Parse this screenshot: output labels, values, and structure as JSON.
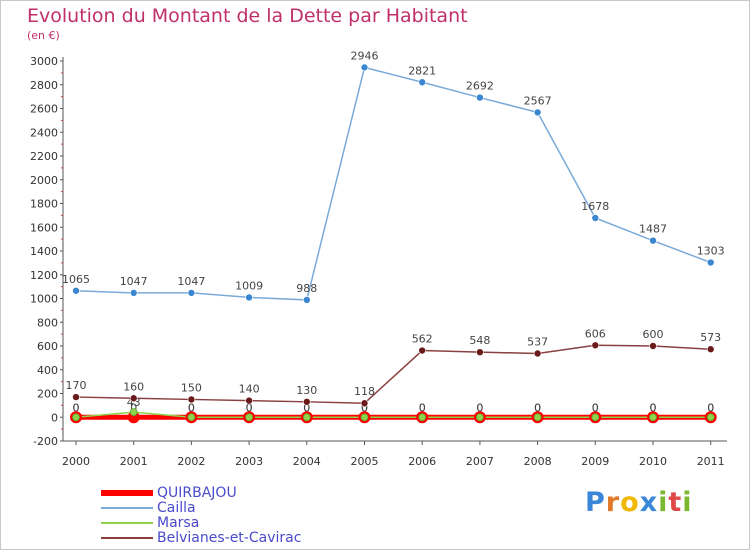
{
  "header": {
    "title": "Evolution du Montant de la Dette par Habitant",
    "unit": "(en €)"
  },
  "logo": {
    "letters": [
      "P",
      "r",
      "o",
      "x",
      "i",
      "t",
      "i"
    ],
    "colors": [
      "#3a86d8",
      "#e07a2a",
      "#f0b800",
      "#3a86d8",
      "#7ab830",
      "#e04848",
      "#7ab830"
    ]
  },
  "chart_data": {
    "type": "line",
    "title": "Evolution du Montant de la Dette par Habitant",
    "subtitle": "(en €)",
    "x": [
      "2000",
      "2001",
      "2002",
      "2003",
      "2004",
      "2005",
      "2006",
      "2007",
      "2008",
      "2009",
      "2010",
      "2011"
    ],
    "ylim": [
      -200,
      3000
    ],
    "yticks": [
      -200,
      0,
      200,
      400,
      600,
      800,
      1000,
      1200,
      1400,
      1600,
      1800,
      2000,
      2200,
      2400,
      2600,
      2800,
      3000
    ],
    "grid": false,
    "legend_position": "bottom-left",
    "series": [
      {
        "name": "QUIRBAJOU",
        "values": [
          0,
          0,
          0,
          0,
          0,
          0,
          0,
          0,
          0,
          0,
          0,
          0
        ],
        "labels": [
          "0",
          "0",
          "0",
          "0",
          "0",
          "0",
          "0",
          "0",
          "0",
          "0",
          "0",
          "0"
        ],
        "color": "#ff0000",
        "marker": "#ff0000"
      },
      {
        "name": "Cailla",
        "values": [
          1065,
          1047,
          1047,
          1009,
          988,
          2946,
          2821,
          2692,
          2567,
          1678,
          1487,
          1303
        ],
        "labels": [
          "1065",
          "1047",
          "1047",
          "1009",
          "988",
          "2946",
          "2821",
          "2692",
          "2567",
          "1678",
          "1487",
          "1303"
        ],
        "color": "#7aaad8",
        "marker": "#3a86d0"
      },
      {
        "name": "Marsa",
        "values": [
          0,
          43,
          0,
          0,
          0,
          0,
          0,
          0,
          0,
          0,
          0,
          0
        ],
        "labels": [
          "0",
          "43",
          "0",
          "0",
          "0",
          "0",
          "0",
          "0",
          "0",
          "0",
          "0",
          "0"
        ],
        "color": "#8ed44a",
        "marker": "#8ed44a"
      },
      {
        "name": "Belvianes-et-Cavirac",
        "values": [
          170,
          160,
          150,
          140,
          130,
          118,
          562,
          548,
          537,
          606,
          600,
          573
        ],
        "labels": [
          "170",
          "160",
          "150",
          "140",
          "130",
          "118",
          "562",
          "548",
          "537",
          "606",
          "600",
          "573"
        ],
        "color": "#8a4040",
        "marker": "#6a1a1a"
      }
    ]
  }
}
